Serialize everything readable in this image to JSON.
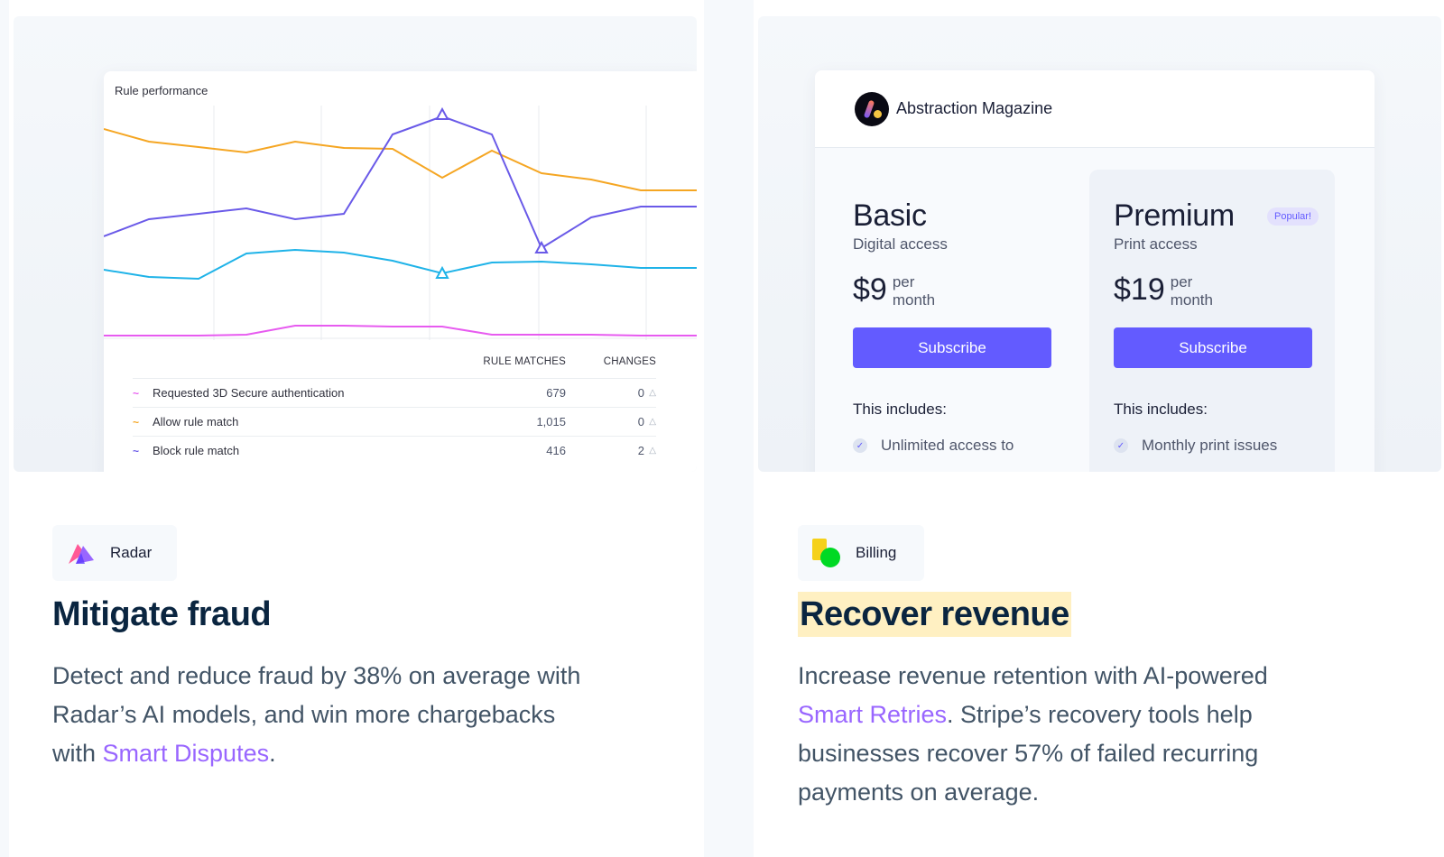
{
  "left_card": {
    "rule_panel": {
      "title": "Rule performance",
      "columns": {
        "matches": "RULE MATCHES",
        "changes": "CHANGES"
      },
      "rows": [
        {
          "name": "Requested 3D Secure authentication",
          "matches": "679",
          "changes": "0",
          "color": "#e75bf0"
        },
        {
          "name": "Allow rule match",
          "matches": "1,015",
          "changes": "0",
          "color": "#f5a623"
        },
        {
          "name": "Block rule match",
          "matches": "416",
          "changes": "2",
          "color": "#6a5ae8"
        }
      ]
    },
    "badge": {
      "label": "Radar",
      "icon": "radar-icon"
    },
    "headline": "Mitigate fraud",
    "body": {
      "pre": "Detect and reduce fraud by 38% on average with Radar’s AI models, and win more chargebacks with ",
      "link": "Smart Disputes",
      "post": "."
    }
  },
  "right_card": {
    "pricing": {
      "brand": "Abstraction Magazine",
      "plans": [
        {
          "name": "Basic",
          "sub": "Digital access",
          "price": "$9",
          "per": "per month",
          "cta": "Subscribe",
          "includes": "This includes:",
          "feature": "Unlimited access to",
          "popular": ""
        },
        {
          "name": "Premium",
          "sub": "Print access",
          "price": "$19",
          "per": "per month",
          "cta": "Subscribe",
          "includes": "This includes:",
          "feature": "Monthly print issues",
          "popular": "Popular!"
        }
      ]
    },
    "badge": {
      "label": "Billing",
      "icon": "billing-icon"
    },
    "headline": "Recover revenue",
    "body": {
      "pre": "Increase revenue retention with AI-powered ",
      "link": "Smart Retries",
      "post": ". Stripe’s recovery tools help businesses recover 57% of failed recurring payments on average."
    }
  },
  "colors": {
    "accent": "#635bff",
    "link": "#9966ff",
    "highlight": "#fff0c2"
  }
}
